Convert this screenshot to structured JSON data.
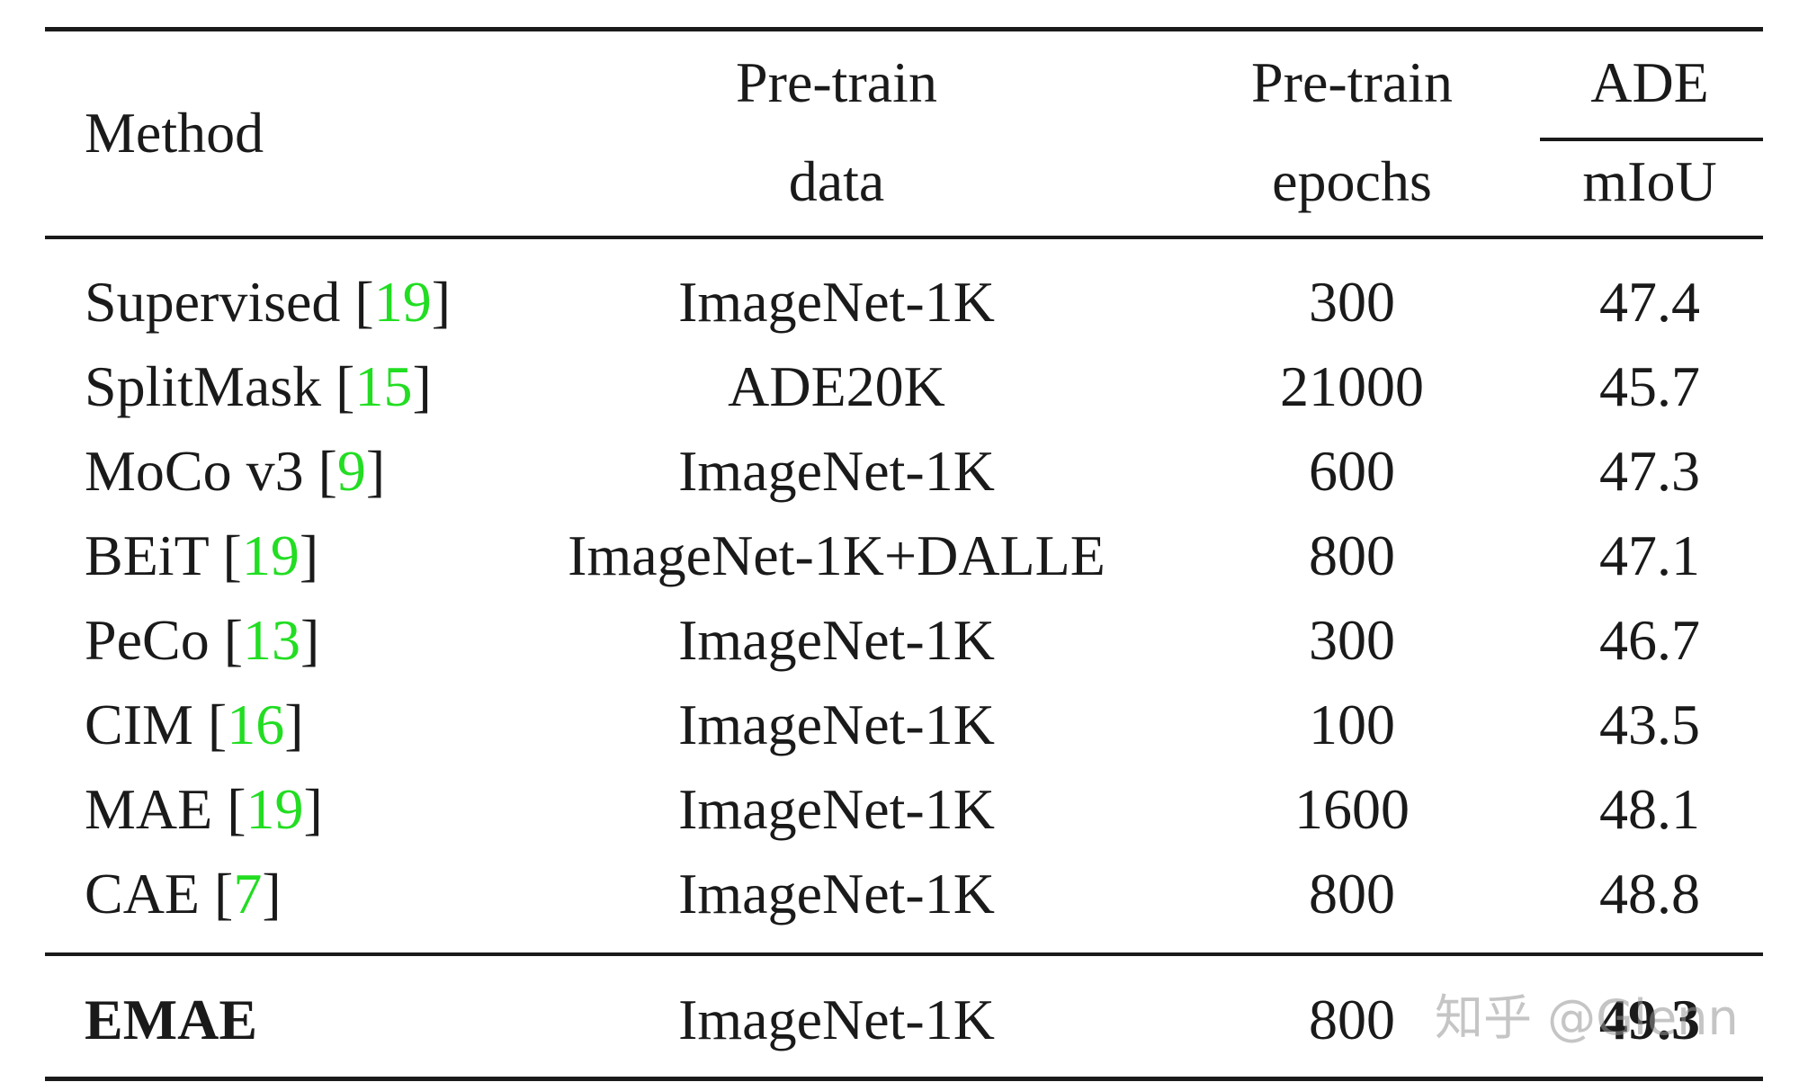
{
  "table": {
    "headers": {
      "method": "Method",
      "pretrain_data_line1": "Pre-train",
      "pretrain_data_line2": "data",
      "pretrain_epochs_line1": "Pre-train",
      "pretrain_epochs_line2": "epochs",
      "ade": "ADE",
      "miou": "mIoU"
    },
    "rows": [
      {
        "method": "Supervised",
        "ref": "19",
        "data": "ImageNet-1K",
        "epochs": "300",
        "miou": "47.4"
      },
      {
        "method": "SplitMask",
        "ref": "15",
        "data": "ADE20K",
        "epochs": "21000",
        "miou": "45.7"
      },
      {
        "method": "MoCo v3",
        "ref": "9",
        "data": "ImageNet-1K",
        "epochs": "600",
        "miou": "47.3"
      },
      {
        "method": "BEiT",
        "ref": "19",
        "data": "ImageNet-1K+DALLE",
        "epochs": "800",
        "miou": "47.1"
      },
      {
        "method": "PeCo",
        "ref": "13",
        "data": "ImageNet-1K",
        "epochs": "300",
        "miou": "46.7"
      },
      {
        "method": "CIM",
        "ref": "16",
        "data": "ImageNet-1K",
        "epochs": "100",
        "miou": "43.5"
      },
      {
        "method": "MAE",
        "ref": "19",
        "data": "ImageNet-1K",
        "epochs": "1600",
        "miou": "48.1"
      },
      {
        "method": "CAE",
        "ref": "7",
        "data": "ImageNet-1K",
        "epochs": "800",
        "miou": "48.8"
      }
    ],
    "final_row": {
      "method": "EMAE",
      "data": "ImageNet-1K",
      "epochs": "800",
      "miou": "49.3"
    },
    "ref_color": "#22dd22"
  },
  "watermark": "知乎 @Glenn"
}
